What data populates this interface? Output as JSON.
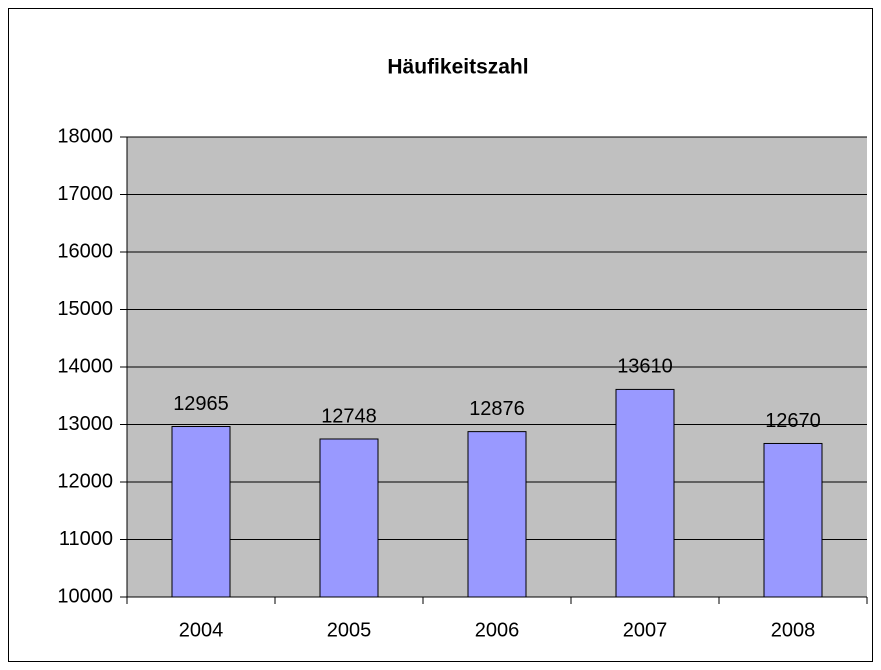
{
  "chart_data": {
    "type": "bar",
    "title": "Häufikeitszahl",
    "categories": [
      "2004",
      "2005",
      "2006",
      "2007",
      "2008"
    ],
    "values": [
      12965,
      12748,
      12876,
      13610,
      12670
    ],
    "color": "#9999ff",
    "ylim": [
      10000,
      18000
    ],
    "yticks": [
      10000,
      11000,
      12000,
      13000,
      14000,
      15000,
      16000,
      17000,
      18000
    ],
    "grid": true
  }
}
